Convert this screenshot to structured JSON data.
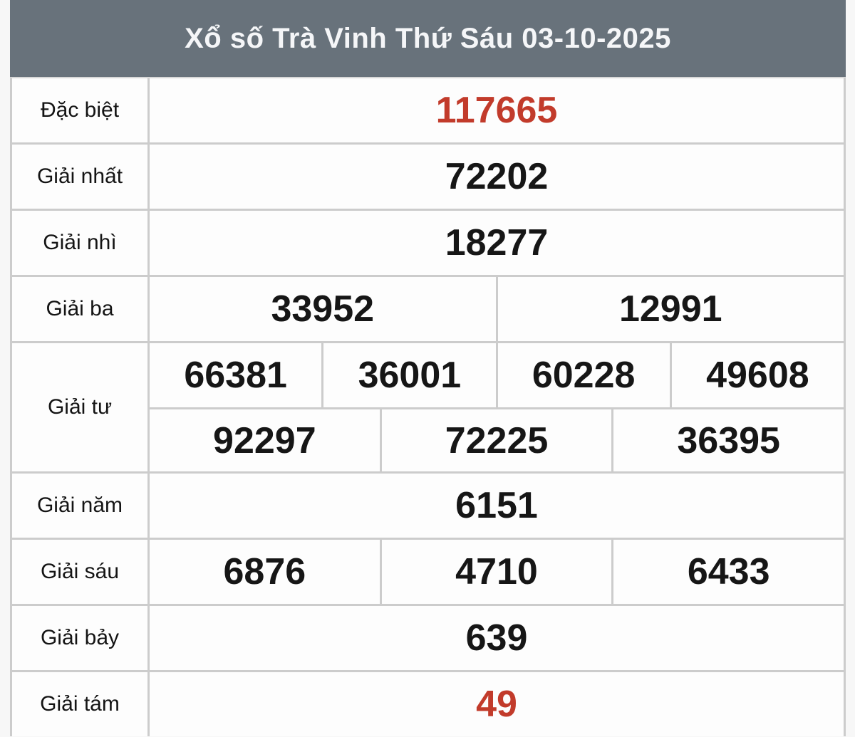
{
  "colors": {
    "header_bg": "#68727b",
    "accent_red": "#c23b2b",
    "text_black": "#161616",
    "border_gray": "#cccccc"
  },
  "header": {
    "title": "Xổ số Trà Vinh Thứ Sáu 03-10-2025"
  },
  "table": {
    "rows": [
      {
        "label": "Đặc biệt",
        "lines": [
          {
            "cells": [
              "117665"
            ]
          }
        ]
      },
      {
        "label": "Giải nhất",
        "lines": [
          {
            "cells": [
              "72202"
            ]
          }
        ]
      },
      {
        "label": "Giải nhì",
        "lines": [
          {
            "cells": [
              "18277"
            ]
          }
        ]
      },
      {
        "label": "Giải ba",
        "lines": [
          {
            "cells": [
              "33952",
              "12991"
            ]
          }
        ]
      },
      {
        "label": "Giải tư",
        "lines": [
          {
            "cells": [
              "66381",
              "36001",
              "60228",
              "49608"
            ]
          },
          {
            "cells": [
              "92297",
              "72225",
              "36395"
            ]
          }
        ]
      },
      {
        "label": "Giải năm",
        "lines": [
          {
            "cells": [
              "6151"
            ]
          }
        ]
      },
      {
        "label": "Giải sáu",
        "lines": [
          {
            "cells": [
              "6876",
              "4710",
              "6433"
            ]
          }
        ]
      },
      {
        "label": "Giải bảy",
        "lines": [
          {
            "cells": [
              "639"
            ]
          }
        ]
      },
      {
        "label": "Giải tám",
        "lines": [
          {
            "cells": [
              "49"
            ]
          }
        ]
      }
    ]
  }
}
